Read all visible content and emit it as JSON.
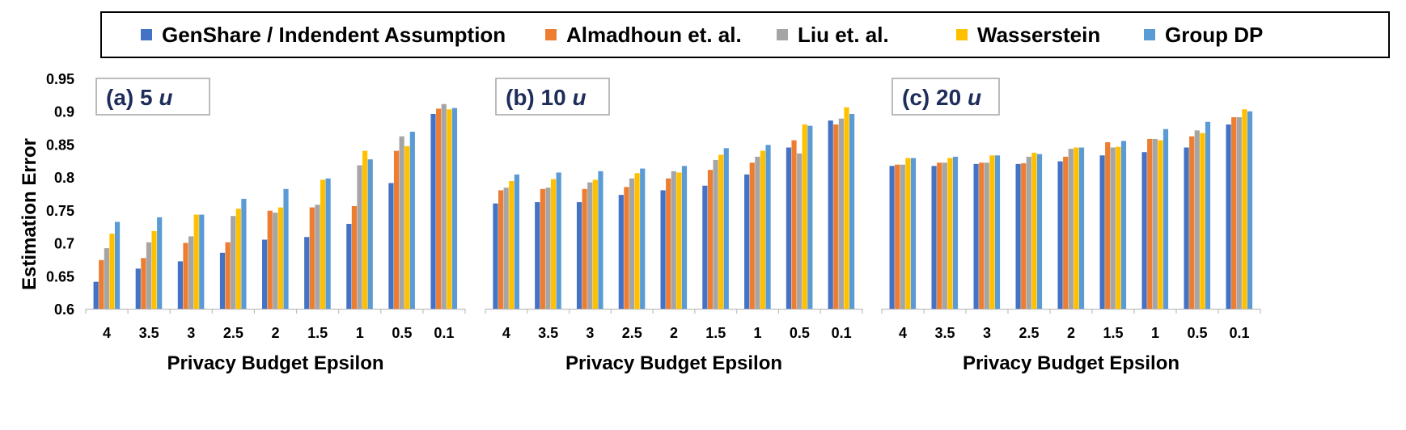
{
  "legend": [
    {
      "name": "GenShare / Indendent Assumption",
      "color": "#4472C4"
    },
    {
      "name": "Almadhoun et. al.",
      "color": "#ED7D31"
    },
    {
      "name": "Liu et. al.",
      "color": "#A5A5A5"
    },
    {
      "name": "Wasserstein",
      "color": "#FFC000"
    },
    {
      "name": "Group DP",
      "color": "#5B9BD5"
    }
  ],
  "ylabel": "Estimation Error",
  "chart_data": [
    {
      "type": "bar",
      "title": "(a) 5 u",
      "title_prefix": "(a) 5 ",
      "title_var": "u",
      "xlabel": "Privacy Budget Epsilon",
      "ylabel": "Estimation Error",
      "ylim": [
        0.6,
        0.95
      ],
      "yticks": [
        "0.6",
        "0.65",
        "0.7",
        "0.75",
        "0.8",
        "0.85",
        "0.9",
        "0.95"
      ],
      "categories": [
        "4",
        "3.5",
        "3",
        "2.5",
        "2",
        "1.5",
        "1",
        "0.5",
        "0.1"
      ],
      "series": [
        {
          "name": "GenShare / Indendent Assumption",
          "values": [
            0.641,
            0.661,
            0.672,
            0.685,
            0.705,
            0.709,
            0.729,
            0.791,
            0.896
          ]
        },
        {
          "name": "Almadhoun et. al.",
          "values": [
            0.674,
            0.677,
            0.7,
            0.701,
            0.749,
            0.754,
            0.756,
            0.84,
            0.904
          ]
        },
        {
          "name": "Liu et. al.",
          "values": [
            0.692,
            0.701,
            0.71,
            0.741,
            0.746,
            0.758,
            0.818,
            0.862,
            0.911
          ]
        },
        {
          "name": "Wasserstein",
          "values": [
            0.714,
            0.718,
            0.743,
            0.752,
            0.754,
            0.796,
            0.84,
            0.847,
            0.903
          ]
        },
        {
          "name": "Group DP",
          "values": [
            0.732,
            0.739,
            0.743,
            0.767,
            0.782,
            0.798,
            0.827,
            0.869,
            0.905
          ]
        }
      ]
    },
    {
      "type": "bar",
      "title": "(b) 10 u",
      "title_prefix": "(b) 10 ",
      "title_var": "u",
      "xlabel": "Privacy Budget Epsilon",
      "ylim": [
        0.6,
        0.95
      ],
      "categories": [
        "4",
        "3.5",
        "3",
        "2.5",
        "2",
        "1.5",
        "1",
        "0.5",
        "0.1"
      ],
      "series": [
        {
          "name": "GenShare / Indendent Assumption",
          "values": [
            0.76,
            0.762,
            0.762,
            0.773,
            0.78,
            0.787,
            0.804,
            0.845,
            0.886
          ]
        },
        {
          "name": "Almadhoun et. al.",
          "values": [
            0.78,
            0.782,
            0.782,
            0.785,
            0.798,
            0.811,
            0.822,
            0.856,
            0.88
          ]
        },
        {
          "name": "Liu et. al.",
          "values": [
            0.784,
            0.784,
            0.792,
            0.798,
            0.809,
            0.826,
            0.831,
            0.836,
            0.889
          ]
        },
        {
          "name": "Wasserstein",
          "values": [
            0.794,
            0.797,
            0.796,
            0.806,
            0.807,
            0.834,
            0.84,
            0.88,
            0.906
          ]
        },
        {
          "name": "Group DP",
          "values": [
            0.804,
            0.807,
            0.809,
            0.813,
            0.817,
            0.844,
            0.849,
            0.878,
            0.896
          ]
        }
      ]
    },
    {
      "type": "bar",
      "title": "(c) 20 u",
      "title_prefix": "(c) 20 ",
      "title_var": "u",
      "xlabel": "Privacy Budget Epsilon",
      "ylim": [
        0.6,
        0.95
      ],
      "categories": [
        "4",
        "3.5",
        "3",
        "2.5",
        "2",
        "1.5",
        "1",
        "0.5",
        "0.1"
      ],
      "series": [
        {
          "name": "GenShare / Indendent Assumption",
          "values": [
            0.817,
            0.817,
            0.82,
            0.82,
            0.824,
            0.833,
            0.838,
            0.845,
            0.88
          ]
        },
        {
          "name": "Almadhoun et. al.",
          "values": [
            0.819,
            0.822,
            0.822,
            0.821,
            0.831,
            0.853,
            0.858,
            0.862,
            0.891
          ]
        },
        {
          "name": "Liu et. al.",
          "values": [
            0.819,
            0.822,
            0.822,
            0.831,
            0.843,
            0.845,
            0.858,
            0.871,
            0.891
          ]
        },
        {
          "name": "Wasserstein",
          "values": [
            0.829,
            0.829,
            0.833,
            0.837,
            0.845,
            0.846,
            0.856,
            0.867,
            0.903
          ]
        },
        {
          "name": "Group DP",
          "values": [
            0.829,
            0.831,
            0.833,
            0.835,
            0.845,
            0.855,
            0.873,
            0.884,
            0.9
          ]
        }
      ]
    }
  ]
}
